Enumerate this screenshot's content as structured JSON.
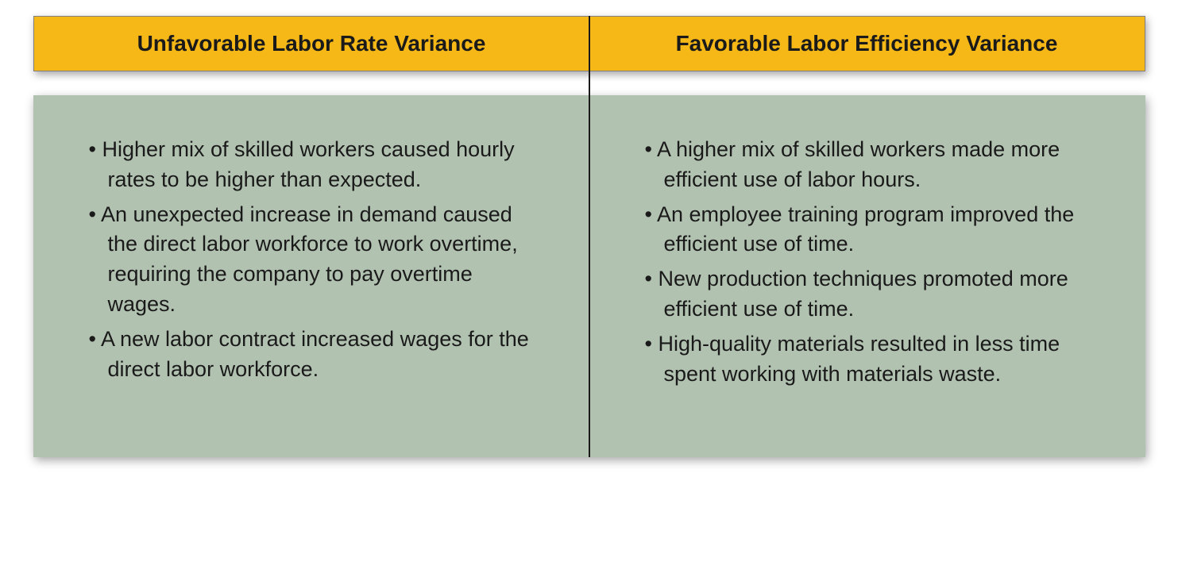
{
  "comparison": {
    "type": "two-column-comparison",
    "header_bg": "#f5b817",
    "header_border": "#808080",
    "body_bg": "#b2c2b1",
    "divider_color": "#1a1a1a",
    "text_color": "#1a1a1a",
    "header_fontsize": 28,
    "body_fontsize": 27,
    "left": {
      "title": "Unfavorable Labor Rate Variance",
      "items": [
        "Higher mix of skilled workers caused hourly rates to be higher than expected.",
        "An unexpected increase in demand caused the direct labor workforce to work overtime, requiring the company to pay overtime wages.",
        "A new labor contract increased wages for the direct labor workforce."
      ]
    },
    "right": {
      "title": "Favorable Labor Efficiency Variance",
      "items": [
        "A higher mix of skilled workers made more efficient use of labor hours.",
        "An employee training program improved the efficient use of time.",
        "New production techniques promoted more efficient use of time.",
        "High-quality materials resulted in less time spent working with materials waste."
      ]
    }
  }
}
